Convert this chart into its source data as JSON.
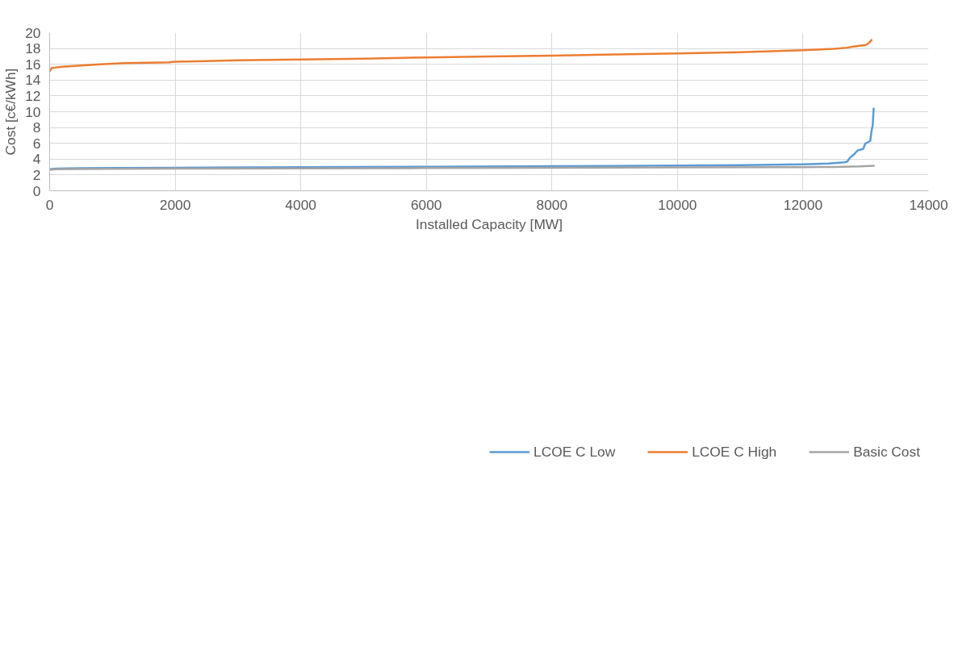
{
  "chart_data": {
    "type": "line",
    "xlabel": "Installed Capacity [MW]",
    "ylabel": "Cost [c€/kWh]",
    "xlim": [
      0,
      14000
    ],
    "xticks": [
      0,
      2000,
      4000,
      6000,
      8000,
      10000,
      12000,
      14000
    ],
    "ylim": [
      0,
      20
    ],
    "yticks": [
      0,
      2,
      4,
      6,
      8,
      10,
      12,
      14,
      16,
      18,
      20
    ],
    "grid": true,
    "legend": "bottom",
    "marker": "none",
    "line_style": "solid",
    "series": [
      {
        "name": "LCOE C Low",
        "color": "#5b9bd5",
        "x": [
          0,
          100,
          500,
          1000,
          2000,
          4000,
          6000,
          8000,
          10000,
          11000,
          12000,
          12400,
          12660,
          12705,
          12750,
          12825,
          12870,
          12910,
          12960,
          12990,
          13071,
          13090,
          13110,
          13126
        ],
        "values": [
          2.72,
          2.8,
          2.85,
          2.88,
          2.92,
          2.98,
          3.03,
          3.1,
          3.18,
          3.25,
          3.35,
          3.45,
          3.6,
          3.7,
          4.2,
          4.7,
          5.1,
          5.18,
          5.3,
          5.96,
          6.3,
          7.5,
          8.3,
          10.5
        ]
      },
      {
        "name": "LCOE C High",
        "color": "#ed7d31",
        "x": [
          0,
          30,
          100,
          200,
          400,
          800,
          1200,
          1900,
          2000,
          3000,
          4000,
          5000,
          6000,
          7000,
          8000,
          9000,
          10000,
          11000,
          12000,
          12500,
          12700,
          12800,
          13000,
          13050,
          13100
        ],
        "values": [
          15.1,
          15.5,
          15.6,
          15.7,
          15.8,
          16.0,
          16.15,
          16.25,
          16.33,
          16.5,
          16.6,
          16.7,
          16.87,
          17.0,
          17.1,
          17.25,
          17.38,
          17.52,
          17.78,
          17.95,
          18.1,
          18.25,
          18.45,
          18.7,
          19.15
        ]
      },
      {
        "name": "Basic Cost",
        "color": "#a5a5a5",
        "x": [
          0,
          100,
          1000,
          2000,
          4000,
          6000,
          8000,
          10000,
          12000,
          12500,
          12900,
          13140
        ],
        "values": [
          2.65,
          2.72,
          2.78,
          2.8,
          2.83,
          2.87,
          2.92,
          2.95,
          2.98,
          3.02,
          3.08,
          3.16
        ]
      }
    ]
  }
}
